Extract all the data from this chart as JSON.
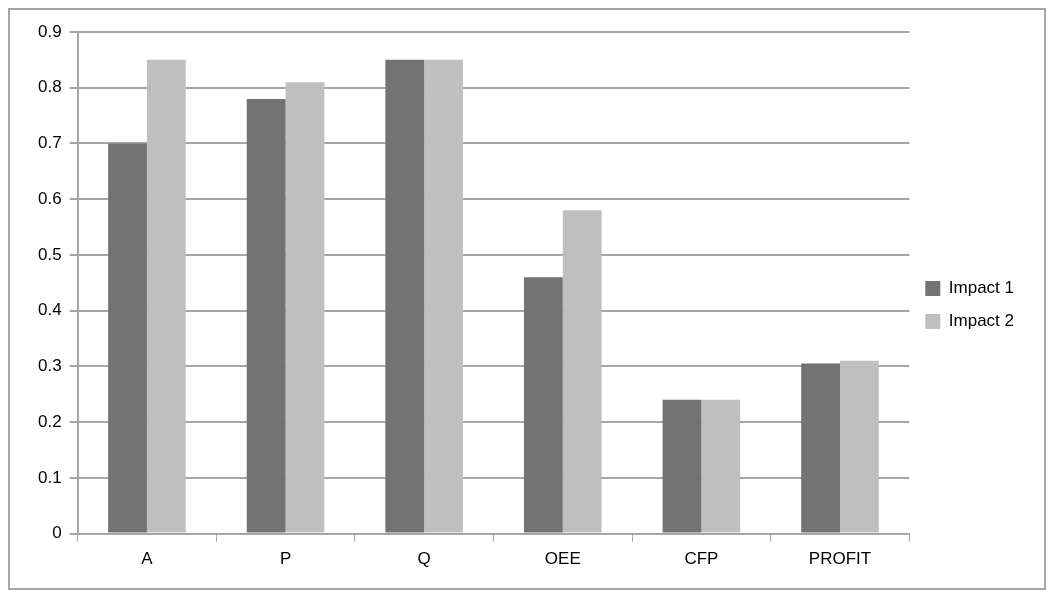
{
  "chart_data": {
    "type": "bar",
    "categories": [
      "A",
      "P",
      "Q",
      "OEE",
      "CFP",
      "PROFIT"
    ],
    "series": [
      {
        "name": "Impact 1",
        "color": "#737373",
        "values": [
          0.7,
          0.78,
          0.85,
          0.46,
          0.24,
          0.305
        ]
      },
      {
        "name": "Impact 2",
        "color": "#bfbfbf",
        "values": [
          0.85,
          0.81,
          0.85,
          0.58,
          0.24,
          0.31
        ]
      }
    ],
    "ylim": [
      0,
      0.9
    ],
    "yticks": [
      0,
      0.1,
      0.2,
      0.3,
      0.4,
      0.5,
      0.6,
      0.7,
      0.8,
      0.9
    ],
    "grid": "y",
    "legend": "right"
  }
}
